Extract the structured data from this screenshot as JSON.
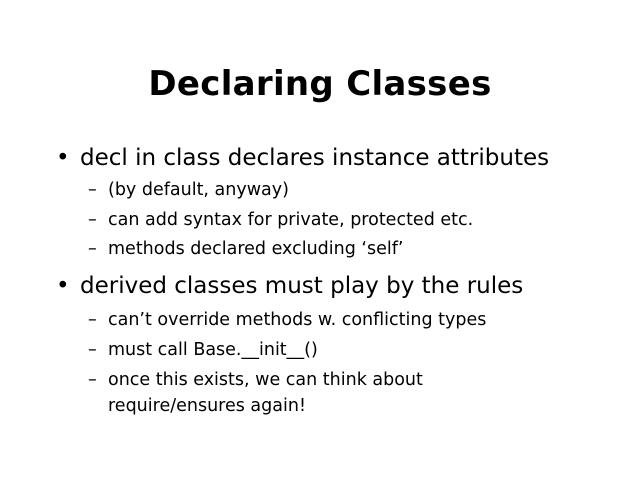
{
  "slide": {
    "title": "Declaring Classes",
    "bullets": [
      {
        "marker": "•",
        "text": "decl in class declares instance attributes",
        "subs": [
          {
            "marker": "–",
            "text": "(by default, anyway)"
          },
          {
            "marker": "–",
            "text": "can add syntax for private, protected etc."
          },
          {
            "marker": "–",
            "text": "methods declared excluding ‘self’"
          }
        ]
      },
      {
        "marker": "•",
        "text": "derived classes must play by the rules",
        "subs": [
          {
            "marker": "–",
            "text": "can’t override methods w. conflicting types"
          },
          {
            "marker": "–",
            "text": "must call Base.__init__()"
          },
          {
            "marker": "–",
            "text": "once this exists, we can think about require/ensures again!"
          }
        ]
      }
    ]
  }
}
